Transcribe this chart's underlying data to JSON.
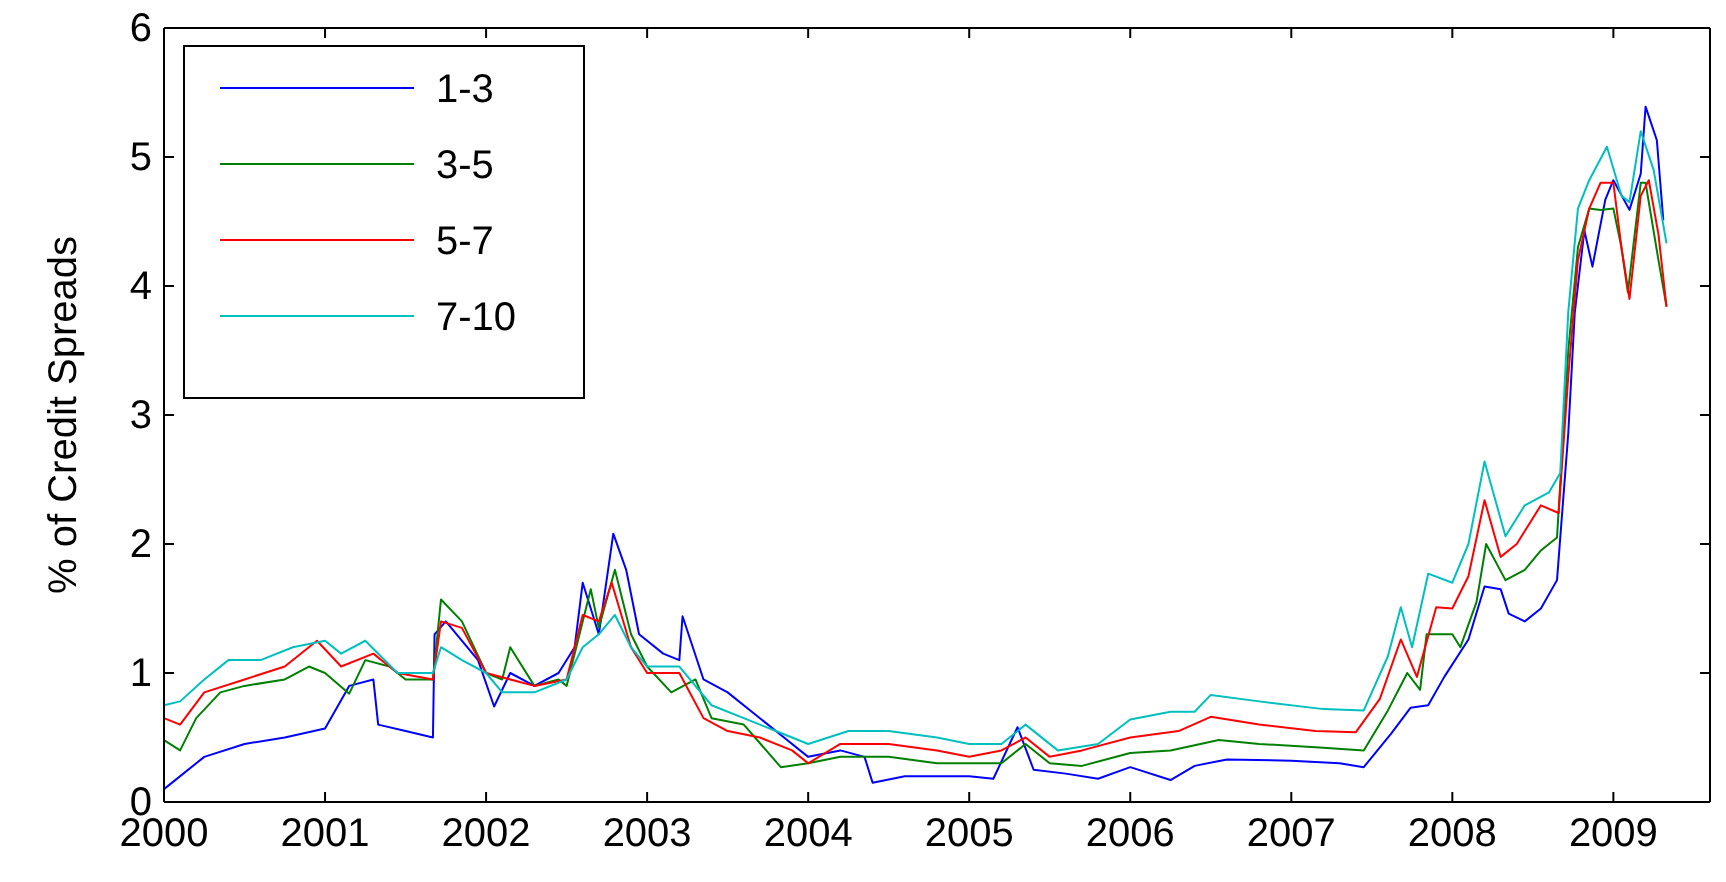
{
  "chart_data": {
    "type": "line",
    "ylabel": "% of Credit Spreads",
    "xlim": [
      2000,
      2009.6
    ],
    "xticks": [
      2000,
      2001,
      2002,
      2003,
      2004,
      2005,
      2006,
      2007,
      2008,
      2009
    ],
    "ylim": [
      0,
      6
    ],
    "yticks": [
      0,
      1,
      2,
      3,
      4,
      5,
      6
    ],
    "grid": false,
    "legend": "top left",
    "line_style": "solid",
    "marker": "none",
    "series": [
      {
        "name": "1-3",
        "color": "#0000ff",
        "x": [
          2000,
          2000.25,
          2000.5,
          2000.75,
          2001,
          2001.15,
          2001.3,
          2001.33,
          2001.5,
          2001.67,
          2001.68,
          2001.75,
          2001.95,
          2002.05,
          2002.15,
          2002.3,
          2002.45,
          2002.55,
          2002.6,
          2002.7,
          2002.79,
          2002.87,
          2002.95,
          2003.1,
          2003.2,
          2003.22,
          2003.35,
          2003.5,
          2003.65,
          2003.85,
          2004,
          2004.2,
          2004.35,
          2004.4,
          2004.6,
          2004.85,
          2005,
          2005.15,
          2005.3,
          2005.4,
          2005.6,
          2005.8,
          2006,
          2006.25,
          2006.4,
          2006.6,
          2007,
          2007.3,
          2007.45,
          2007.62,
          2007.74,
          2007.85,
          2007.95,
          2008.1,
          2008.2,
          2008.3,
          2008.35,
          2008.45,
          2008.55,
          2008.65,
          2008.72,
          2008.76,
          2008.82,
          2008.87,
          2008.95,
          2009,
          2009.1,
          2009.17,
          2009.2,
          2009.27,
          2009.31
        ],
        "values": [
          0.1,
          0.35,
          0.45,
          0.5,
          0.57,
          0.9,
          0.95,
          0.6,
          0.55,
          0.5,
          1.3,
          1.4,
          1.1,
          0.74,
          1.0,
          0.9,
          1.0,
          1.2,
          1.7,
          1.3,
          2.08,
          1.8,
          1.3,
          1.15,
          1.1,
          1.44,
          0.95,
          0.85,
          0.7,
          0.5,
          0.35,
          0.4,
          0.35,
          0.15,
          0.2,
          0.2,
          0.2,
          0.18,
          0.58,
          0.25,
          0.22,
          0.18,
          0.27,
          0.17,
          0.28,
          0.33,
          0.32,
          0.3,
          0.27,
          0.53,
          0.73,
          0.75,
          0.97,
          1.26,
          1.67,
          1.65,
          1.46,
          1.4,
          1.5,
          1.72,
          2.86,
          3.79,
          4.43,
          4.15,
          4.67,
          4.82,
          4.59,
          4.87,
          5.39,
          5.13,
          4.51
        ]
      },
      {
        "name": "3-5",
        "color": "#008000",
        "x": [
          2000,
          2000.1,
          2000.2,
          2000.35,
          2000.5,
          2000.75,
          2000.9,
          2001,
          2001.15,
          2001.25,
          2001.4,
          2001.5,
          2001.67,
          2001.72,
          2001.85,
          2002,
          2002.1,
          2002.15,
          2002.3,
          2002.45,
          2002.5,
          2002.6,
          2002.65,
          2002.7,
          2002.8,
          2002.9,
          2003,
          2003.15,
          2003.3,
          2003.4,
          2003.6,
          2003.83,
          2004,
          2004.2,
          2004.5,
          2004.8,
          2005,
          2005.2,
          2005.35,
          2005.5,
          2005.7,
          2006,
          2006.25,
          2006.55,
          2006.8,
          2007.2,
          2007.45,
          2007.6,
          2007.72,
          2007.8,
          2007.84,
          2008,
          2008.05,
          2008.15,
          2008.21,
          2008.33,
          2008.45,
          2008.55,
          2008.65,
          2008.72,
          2008.78,
          2008.85,
          2008.92,
          2009,
          2009.05,
          2009.09,
          2009.17,
          2009.2,
          2009.28,
          2009.33
        ],
        "values": [
          0.48,
          0.4,
          0.65,
          0.85,
          0.9,
          0.95,
          1.05,
          1.0,
          0.84,
          1.1,
          1.05,
          0.95,
          0.95,
          1.57,
          1.4,
          1.0,
          0.95,
          1.2,
          0.9,
          0.95,
          0.9,
          1.4,
          1.65,
          1.35,
          1.8,
          1.3,
          1.05,
          0.85,
          0.95,
          0.65,
          0.6,
          0.27,
          0.3,
          0.35,
          0.35,
          0.3,
          0.3,
          0.3,
          0.45,
          0.3,
          0.28,
          0.38,
          0.4,
          0.48,
          0.45,
          0.42,
          0.4,
          0.71,
          1.0,
          0.87,
          1.3,
          1.3,
          1.2,
          1.55,
          2.0,
          1.72,
          1.8,
          1.95,
          2.05,
          3.5,
          4.3,
          4.6,
          4.59,
          4.6,
          4.3,
          3.95,
          4.8,
          4.8,
          4.2,
          3.84
        ]
      },
      {
        "name": "5-7",
        "color": "#ff0000",
        "x": [
          2000,
          2000.1,
          2000.25,
          2000.5,
          2000.75,
          2000.95,
          2001.1,
          2001.3,
          2001.45,
          2001.67,
          2001.72,
          2001.85,
          2002,
          2002.3,
          2002.5,
          2002.6,
          2002.7,
          2002.78,
          2002.9,
          2003,
          2003.2,
          2003.35,
          2003.5,
          2003.7,
          2003.9,
          2004,
          2004.2,
          2004.5,
          2004.8,
          2005,
          2005.2,
          2005.35,
          2005.5,
          2005.7,
          2006,
          2006.3,
          2006.5,
          2006.8,
          2007.15,
          2007.4,
          2007.55,
          2007.68,
          2007.78,
          2007.9,
          2008,
          2008.1,
          2008.2,
          2008.3,
          2008.4,
          2008.55,
          2008.66,
          2008.72,
          2008.78,
          2008.85,
          2008.92,
          2009,
          2009.05,
          2009.1,
          2009.17,
          2009.22,
          2009.28,
          2009.33
        ],
        "values": [
          0.65,
          0.6,
          0.85,
          0.95,
          1.05,
          1.25,
          1.05,
          1.15,
          1.0,
          0.95,
          1.4,
          1.35,
          1.0,
          0.9,
          0.95,
          1.45,
          1.4,
          1.7,
          1.2,
          1.0,
          1.0,
          0.65,
          0.55,
          0.5,
          0.4,
          0.3,
          0.45,
          0.45,
          0.4,
          0.35,
          0.4,
          0.5,
          0.35,
          0.4,
          0.5,
          0.55,
          0.66,
          0.6,
          0.55,
          0.54,
          0.8,
          1.26,
          0.97,
          1.51,
          1.5,
          1.75,
          2.34,
          1.9,
          2.0,
          2.3,
          2.24,
          3.3,
          4.2,
          4.6,
          4.8,
          4.8,
          4.3,
          3.9,
          4.7,
          4.82,
          4.4,
          3.84
        ]
      },
      {
        "name": "7-10",
        "color": "#00bfbf",
        "x": [
          2000,
          2000.1,
          2000.25,
          2000.4,
          2000.6,
          2000.8,
          2001,
          2001.1,
          2001.25,
          2001.45,
          2001.67,
          2001.72,
          2001.85,
          2002,
          2002.1,
          2002.3,
          2002.5,
          2002.6,
          2002.7,
          2002.8,
          2002.9,
          2003,
          2003.2,
          2003.4,
          2003.6,
          2003.8,
          2004,
          2004.25,
          2004.5,
          2004.8,
          2005,
          2005.2,
          2005.35,
          2005.55,
          2005.8,
          2006,
          2006.25,
          2006.4,
          2006.5,
          2006.8,
          2007.2,
          2007.45,
          2007.6,
          2007.68,
          2007.75,
          2007.85,
          2008,
          2008.1,
          2008.2,
          2008.33,
          2008.45,
          2008.6,
          2008.67,
          2008.72,
          2008.78,
          2008.85,
          2008.96,
          2009.05,
          2009.1,
          2009.17,
          2009.25,
          2009.33
        ],
        "values": [
          0.75,
          0.78,
          0.95,
          1.1,
          1.1,
          1.2,
          1.25,
          1.15,
          1.25,
          1.0,
          1.0,
          1.2,
          1.1,
          1.0,
          0.85,
          0.85,
          0.95,
          1.2,
          1.3,
          1.45,
          1.2,
          1.05,
          1.05,
          0.75,
          0.65,
          0.55,
          0.45,
          0.55,
          0.55,
          0.5,
          0.45,
          0.45,
          0.6,
          0.4,
          0.45,
          0.64,
          0.7,
          0.7,
          0.83,
          0.78,
          0.72,
          0.71,
          1.13,
          1.51,
          1.2,
          1.77,
          1.7,
          2.0,
          2.64,
          2.06,
          2.3,
          2.4,
          2.55,
          3.8,
          4.6,
          4.82,
          5.08,
          4.7,
          4.65,
          5.2,
          4.9,
          4.33
        ]
      }
    ]
  }
}
